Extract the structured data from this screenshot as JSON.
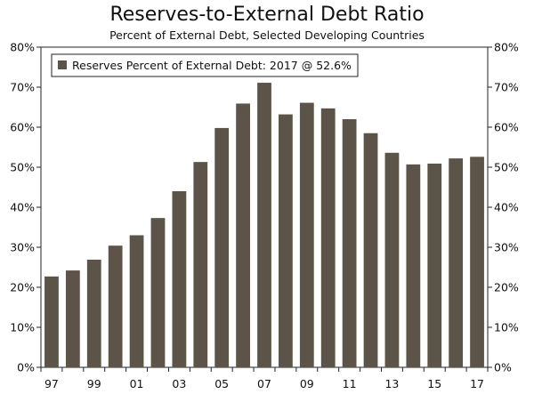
{
  "chart_data": {
    "type": "bar",
    "title": "Reserves-to-External Debt Ratio",
    "subtitle": "Percent of External Debt, Selected Developing Countries",
    "categories": [
      "97",
      "98",
      "99",
      "00",
      "01",
      "02",
      "03",
      "04",
      "05",
      "06",
      "07",
      "08",
      "09",
      "10",
      "11",
      "12",
      "13",
      "14",
      "15",
      "16",
      "17"
    ],
    "x_tick_labels": [
      "97",
      "99",
      "01",
      "03",
      "05",
      "07",
      "09",
      "11",
      "13",
      "15",
      "17"
    ],
    "series": [
      {
        "name": "Reserves Percent of External Debt: 2017 @ 52.6%",
        "color": "#5c5448",
        "values": [
          22.7,
          24.2,
          26.9,
          30.4,
          33.0,
          37.3,
          44.0,
          51.3,
          59.8,
          65.9,
          71.1,
          63.2,
          66.1,
          64.7,
          62.0,
          58.5,
          53.6,
          50.7,
          50.9,
          52.2,
          52.6
        ]
      }
    ],
    "y_ticks": [
      "0%",
      "10%",
      "20%",
      "30%",
      "40%",
      "50%",
      "60%",
      "70%",
      "80%"
    ],
    "ylim": [
      0,
      80
    ],
    "legend_position": "top-left",
    "grid": false,
    "dual_y_axis": true
  }
}
